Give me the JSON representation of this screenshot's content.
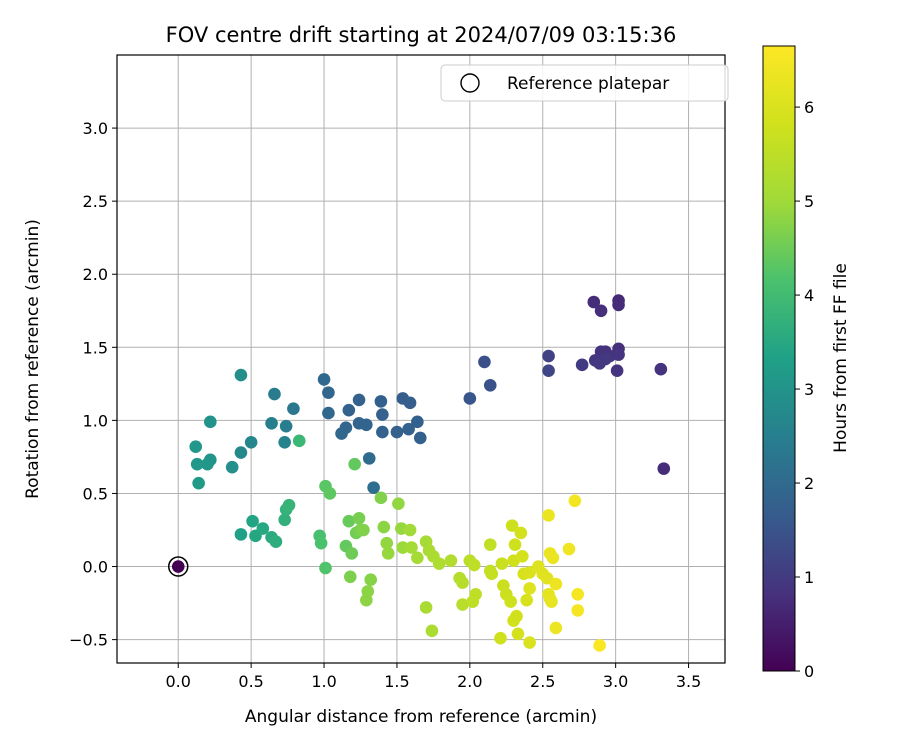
{
  "chart_data": {
    "type": "scatter",
    "title": "FOV centre drift starting at 2024/07/09 03:15:36",
    "xlabel": "Angular distance from reference (arcmin)",
    "ylabel": "Rotation from reference (arcmin)",
    "xlim": [
      -0.42,
      3.75
    ],
    "ylim": [
      -0.66,
      3.5
    ],
    "xticks": [
      0.0,
      0.5,
      1.0,
      1.5,
      2.0,
      2.5,
      3.0,
      3.5
    ],
    "xtick_labels": [
      "0.0",
      "0.5",
      "1.0",
      "1.5",
      "2.0",
      "2.5",
      "3.0",
      "3.5"
    ],
    "yticks": [
      -0.5,
      0.0,
      0.5,
      1.0,
      1.5,
      2.0,
      2.5,
      3.0
    ],
    "ytick_labels": [
      "−0.5",
      "0.0",
      "0.5",
      "1.0",
      "1.5",
      "2.0",
      "2.5",
      "3.0"
    ],
    "grid": true,
    "colormap": "viridis",
    "colorbar": {
      "label": "Hours from first FF file",
      "min": 0,
      "max": 6.65,
      "ticks": [
        0,
        1,
        2,
        3,
        4,
        5,
        6
      ],
      "tick_labels": [
        "0",
        "1",
        "2",
        "3",
        "4",
        "5",
        "6"
      ]
    },
    "legend": {
      "placement": "top-right",
      "entries": [
        {
          "label": "Reference platepar",
          "marker": "open-circle"
        }
      ]
    },
    "reference_point": {
      "x": 0.0,
      "y": 0.0
    },
    "points": [
      {
        "x": 0.0,
        "y": 0.0,
        "c": 0.0
      },
      {
        "x": 2.85,
        "y": 1.81,
        "c": 0.75
      },
      {
        "x": 2.9,
        "y": 1.75,
        "c": 0.78
      },
      {
        "x": 3.02,
        "y": 1.82,
        "c": 0.7
      },
      {
        "x": 3.02,
        "y": 1.79,
        "c": 0.72
      },
      {
        "x": 2.93,
        "y": 1.47,
        "c": 0.82
      },
      {
        "x": 2.9,
        "y": 1.47,
        "c": 0.85
      },
      {
        "x": 3.02,
        "y": 1.49,
        "c": 0.8
      },
      {
        "x": 2.96,
        "y": 1.44,
        "c": 0.9
      },
      {
        "x": 3.02,
        "y": 1.45,
        "c": 0.88
      },
      {
        "x": 2.86,
        "y": 1.41,
        "c": 0.92
      },
      {
        "x": 2.89,
        "y": 1.39,
        "c": 0.95
      },
      {
        "x": 2.93,
        "y": 1.42,
        "c": 0.97
      },
      {
        "x": 2.77,
        "y": 1.38,
        "c": 1.0
      },
      {
        "x": 3.01,
        "y": 1.34,
        "c": 0.9
      },
      {
        "x": 3.31,
        "y": 1.35,
        "c": 0.85
      },
      {
        "x": 3.33,
        "y": 0.67,
        "c": 0.75
      },
      {
        "x": 2.54,
        "y": 1.44,
        "c": 1.15
      },
      {
        "x": 2.54,
        "y": 1.34,
        "c": 1.2
      },
      {
        "x": 2.1,
        "y": 1.4,
        "c": 1.4
      },
      {
        "x": 2.14,
        "y": 1.24,
        "c": 1.45
      },
      {
        "x": 2.0,
        "y": 1.15,
        "c": 1.55
      },
      {
        "x": 1.54,
        "y": 1.15,
        "c": 1.7
      },
      {
        "x": 1.59,
        "y": 1.12,
        "c": 1.72
      },
      {
        "x": 1.39,
        "y": 1.13,
        "c": 1.75
      },
      {
        "x": 1.24,
        "y": 1.14,
        "c": 1.8
      },
      {
        "x": 1.4,
        "y": 1.04,
        "c": 1.78
      },
      {
        "x": 1.17,
        "y": 1.07,
        "c": 1.82
      },
      {
        "x": 1.03,
        "y": 1.19,
        "c": 1.9
      },
      {
        "x": 1.0,
        "y": 1.28,
        "c": 1.95
      },
      {
        "x": 1.03,
        "y": 1.05,
        "c": 1.92
      },
      {
        "x": 1.24,
        "y": 0.98,
        "c": 1.85
      },
      {
        "x": 1.29,
        "y": 0.97,
        "c": 1.88
      },
      {
        "x": 1.15,
        "y": 0.95,
        "c": 1.9
      },
      {
        "x": 1.12,
        "y": 0.91,
        "c": 1.93
      },
      {
        "x": 1.4,
        "y": 0.92,
        "c": 1.84
      },
      {
        "x": 1.5,
        "y": 0.92,
        "c": 1.8
      },
      {
        "x": 1.58,
        "y": 0.94,
        "c": 1.78
      },
      {
        "x": 1.64,
        "y": 0.99,
        "c": 1.75
      },
      {
        "x": 1.66,
        "y": 0.88,
        "c": 1.76
      },
      {
        "x": 1.31,
        "y": 0.74,
        "c": 2.0
      },
      {
        "x": 1.34,
        "y": 0.54,
        "c": 2.1
      },
      {
        "x": 0.79,
        "y": 1.08,
        "c": 2.3
      },
      {
        "x": 0.66,
        "y": 1.18,
        "c": 2.4
      },
      {
        "x": 0.64,
        "y": 0.98,
        "c": 2.5
      },
      {
        "x": 0.74,
        "y": 0.96,
        "c": 2.45
      },
      {
        "x": 0.73,
        "y": 0.85,
        "c": 2.6
      },
      {
        "x": 0.5,
        "y": 0.85,
        "c": 2.7
      },
      {
        "x": 0.43,
        "y": 0.78,
        "c": 2.75
      },
      {
        "x": 0.43,
        "y": 1.31,
        "c": 2.85
      },
      {
        "x": 0.37,
        "y": 0.68,
        "c": 2.9
      },
      {
        "x": 0.22,
        "y": 0.99,
        "c": 2.95
      },
      {
        "x": 0.22,
        "y": 0.73,
        "c": 3.0
      },
      {
        "x": 0.2,
        "y": 0.7,
        "c": 3.05
      },
      {
        "x": 0.12,
        "y": 0.82,
        "c": 3.1
      },
      {
        "x": 0.13,
        "y": 0.7,
        "c": 3.1
      },
      {
        "x": 0.14,
        "y": 0.57,
        "c": 3.15
      },
      {
        "x": 0.43,
        "y": 0.22,
        "c": 3.3
      },
      {
        "x": 0.51,
        "y": 0.31,
        "c": 3.4
      },
      {
        "x": 0.53,
        "y": 0.21,
        "c": 3.45
      },
      {
        "x": 0.58,
        "y": 0.26,
        "c": 3.5
      },
      {
        "x": 0.64,
        "y": 0.2,
        "c": 3.55
      },
      {
        "x": 0.67,
        "y": 0.17,
        "c": 3.6
      },
      {
        "x": 0.73,
        "y": 0.32,
        "c": 3.7
      },
      {
        "x": 0.74,
        "y": 0.39,
        "c": 3.75
      },
      {
        "x": 0.76,
        "y": 0.42,
        "c": 3.8
      },
      {
        "x": 0.83,
        "y": 0.86,
        "c": 3.9
      },
      {
        "x": 0.97,
        "y": 0.21,
        "c": 4.1
      },
      {
        "x": 0.98,
        "y": 0.16,
        "c": 4.15
      },
      {
        "x": 1.01,
        "y": -0.01,
        "c": 4.2
      },
      {
        "x": 1.01,
        "y": 0.55,
        "c": 4.3
      },
      {
        "x": 1.04,
        "y": 0.5,
        "c": 4.35
      },
      {
        "x": 1.15,
        "y": 0.14,
        "c": 4.4
      },
      {
        "x": 1.17,
        "y": 0.31,
        "c": 4.45
      },
      {
        "x": 1.19,
        "y": 0.09,
        "c": 4.5
      },
      {
        "x": 1.21,
        "y": 0.7,
        "c": 4.4
      },
      {
        "x": 1.22,
        "y": 0.23,
        "c": 4.55
      },
      {
        "x": 1.24,
        "y": 0.33,
        "c": 4.6
      },
      {
        "x": 1.25,
        "y": 0.25,
        "c": 4.62
      },
      {
        "x": 1.18,
        "y": -0.07,
        "c": 4.65
      },
      {
        "x": 1.27,
        "y": 0.25,
        "c": 4.7
      },
      {
        "x": 1.32,
        "y": -0.09,
        "c": 4.75
      },
      {
        "x": 1.3,
        "y": -0.17,
        "c": 4.78
      },
      {
        "x": 1.29,
        "y": -0.23,
        "c": 4.8
      },
      {
        "x": 1.39,
        "y": 0.47,
        "c": 4.7
      },
      {
        "x": 1.41,
        "y": 0.27,
        "c": 4.8
      },
      {
        "x": 1.43,
        "y": 0.16,
        "c": 4.85
      },
      {
        "x": 1.44,
        "y": 0.09,
        "c": 4.9
      },
      {
        "x": 1.51,
        "y": 0.43,
        "c": 4.85
      },
      {
        "x": 1.53,
        "y": 0.26,
        "c": 4.9
      },
      {
        "x": 1.54,
        "y": 0.13,
        "c": 4.95
      },
      {
        "x": 1.59,
        "y": 0.25,
        "c": 5.0
      },
      {
        "x": 1.6,
        "y": 0.13,
        "c": 5.05
      },
      {
        "x": 1.64,
        "y": 0.06,
        "c": 5.1
      },
      {
        "x": 1.7,
        "y": 0.17,
        "c": 5.1
      },
      {
        "x": 1.72,
        "y": 0.11,
        "c": 5.15
      },
      {
        "x": 1.75,
        "y": 0.07,
        "c": 5.2
      },
      {
        "x": 1.7,
        "y": -0.28,
        "c": 5.15
      },
      {
        "x": 1.74,
        "y": -0.44,
        "c": 5.2
      },
      {
        "x": 1.79,
        "y": 0.02,
        "c": 5.25
      },
      {
        "x": 1.87,
        "y": 0.04,
        "c": 5.3
      },
      {
        "x": 1.93,
        "y": -0.08,
        "c": 5.35
      },
      {
        "x": 1.95,
        "y": -0.11,
        "c": 5.38
      },
      {
        "x": 1.95,
        "y": -0.26,
        "c": 5.4
      },
      {
        "x": 2.0,
        "y": 0.04,
        "c": 5.45
      },
      {
        "x": 2.03,
        "y": 0.01,
        "c": 5.5
      },
      {
        "x": 2.04,
        "y": -0.19,
        "c": 5.5
      },
      {
        "x": 2.02,
        "y": -0.24,
        "c": 5.52
      },
      {
        "x": 2.14,
        "y": 0.15,
        "c": 5.55
      },
      {
        "x": 2.14,
        "y": -0.03,
        "c": 5.6
      },
      {
        "x": 2.15,
        "y": -0.05,
        "c": 5.62
      },
      {
        "x": 2.22,
        "y": 0.02,
        "c": 5.7
      },
      {
        "x": 2.23,
        "y": -0.13,
        "c": 5.72
      },
      {
        "x": 2.25,
        "y": -0.19,
        "c": 5.75
      },
      {
        "x": 2.21,
        "y": -0.49,
        "c": 5.8
      },
      {
        "x": 2.28,
        "y": -0.24,
        "c": 5.78
      },
      {
        "x": 2.3,
        "y": -0.37,
        "c": 5.85
      },
      {
        "x": 2.32,
        "y": -0.34,
        "c": 5.82
      },
      {
        "x": 2.33,
        "y": -0.46,
        "c": 5.9
      },
      {
        "x": 2.29,
        "y": 0.28,
        "c": 5.75
      },
      {
        "x": 2.31,
        "y": 0.15,
        "c": 5.8
      },
      {
        "x": 2.3,
        "y": 0.04,
        "c": 5.82
      },
      {
        "x": 2.35,
        "y": 0.23,
        "c": 5.85
      },
      {
        "x": 2.36,
        "y": 0.07,
        "c": 5.9
      },
      {
        "x": 2.37,
        "y": -0.05,
        "c": 5.92
      },
      {
        "x": 2.39,
        "y": -0.23,
        "c": 5.95
      },
      {
        "x": 2.41,
        "y": -0.04,
        "c": 6.0
      },
      {
        "x": 2.41,
        "y": -0.15,
        "c": 6.05
      },
      {
        "x": 2.41,
        "y": -0.52,
        "c": 6.0
      },
      {
        "x": 2.47,
        "y": 0.0,
        "c": 6.05
      },
      {
        "x": 2.5,
        "y": -0.05,
        "c": 6.1
      },
      {
        "x": 2.53,
        "y": -0.08,
        "c": 6.15
      },
      {
        "x": 2.54,
        "y": -0.19,
        "c": 6.2
      },
      {
        "x": 2.55,
        "y": -0.22,
        "c": 6.22
      },
      {
        "x": 2.56,
        "y": -0.24,
        "c": 6.25
      },
      {
        "x": 2.55,
        "y": 0.09,
        "c": 6.3
      },
      {
        "x": 2.57,
        "y": 0.06,
        "c": 6.3
      },
      {
        "x": 2.59,
        "y": -0.12,
        "c": 6.35
      },
      {
        "x": 2.59,
        "y": -0.42,
        "c": 6.35
      },
      {
        "x": 2.54,
        "y": 0.35,
        "c": 6.3
      },
      {
        "x": 2.68,
        "y": 0.12,
        "c": 6.4
      },
      {
        "x": 2.72,
        "y": 0.45,
        "c": 6.45
      },
      {
        "x": 2.74,
        "y": -0.19,
        "c": 6.5
      },
      {
        "x": 2.74,
        "y": -0.3,
        "c": 6.5
      },
      {
        "x": 2.89,
        "y": -0.54,
        "c": 6.6
      }
    ]
  }
}
